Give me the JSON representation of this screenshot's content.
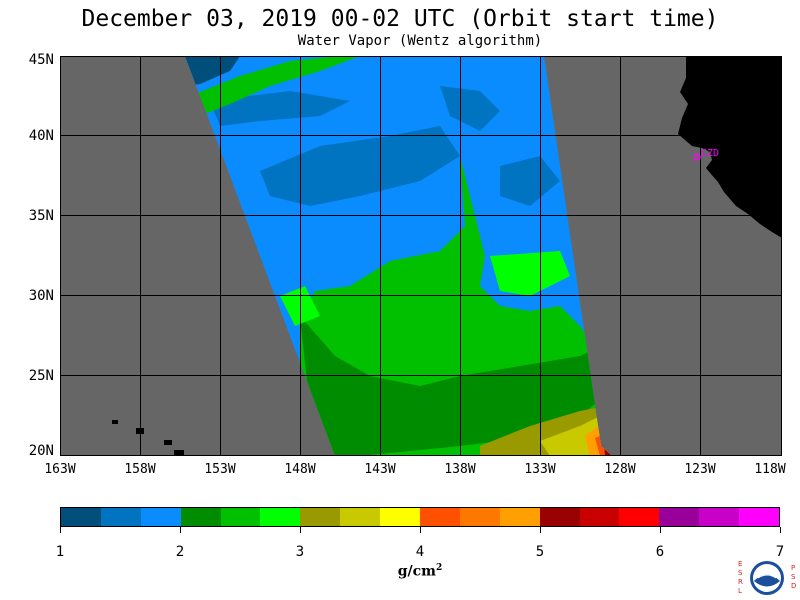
{
  "header": {
    "title": "December 03, 2019  00-02 UTC  (Orbit start time)",
    "subtitle": "Water Vapor (Wentz algorithm)"
  },
  "map": {
    "lat_labels": [
      "45N",
      "40N",
      "35N",
      "30N",
      "25N",
      "20N"
    ],
    "lon_labels": [
      "163W",
      "158W",
      "153W",
      "148W",
      "143W",
      "138W",
      "133W",
      "128W",
      "123W",
      "118W"
    ],
    "station_label": "CZD",
    "colors": {
      "land": "#000000",
      "no_data": "#666666",
      "station": "#ff00ff",
      "grid": "#000000"
    }
  },
  "colorbar": {
    "colors": [
      "#004e7a",
      "#0074c0",
      "#0a8cff",
      "#008c00",
      "#00c000",
      "#00ff00",
      "#999900",
      "#c9c900",
      "#ffff00",
      "#ff5000",
      "#ff7800",
      "#ffa000",
      "#990000",
      "#c80000",
      "#ff0000",
      "#990099",
      "#c800c8",
      "#ff00ff"
    ],
    "tick_labels": [
      "1",
      "2",
      "3",
      "4",
      "5",
      "6",
      "7"
    ],
    "unit_label": "g/cm",
    "unit_exponent": "2"
  },
  "logo": {
    "left_letters": [
      "E",
      "S",
      "R",
      "L"
    ],
    "right_letters": [
      "P",
      "S",
      "D"
    ],
    "icon": "noaa-logo-icon"
  }
}
